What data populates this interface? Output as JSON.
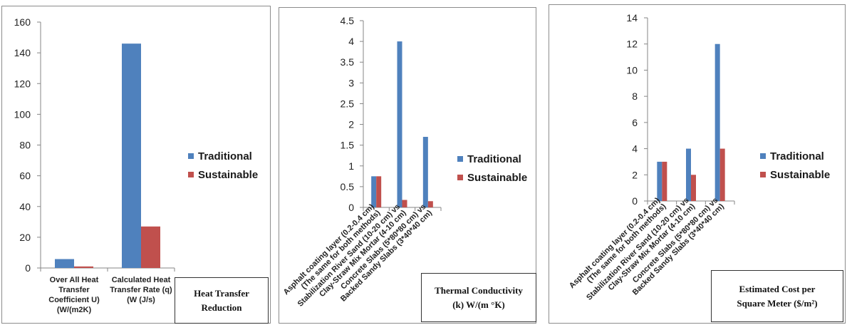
{
  "colors": {
    "traditional": "#4f81bd",
    "sustainable": "#c0504d"
  },
  "chart_data": [
    {
      "type": "bar",
      "categories": [
        "Over All Heat\nTransfer\nCoefficient U)\n(W/(m2K)",
        "Calculated Heat\nTransfer Rate (q)\n(W (J/s)"
      ],
      "series": [
        {
          "name": "Traditional",
          "values": [
            5.8,
            146
          ]
        },
        {
          "name": "Sustainable",
          "values": [
            1,
            27
          ]
        }
      ],
      "ylim": [
        0,
        160
      ],
      "ticks": [
        "0",
        "20",
        "40",
        "60",
        "80",
        "100",
        "120",
        "140",
        "160"
      ],
      "caption": "Heat Transfer\nReduction",
      "legend": "right"
    },
    {
      "type": "bar",
      "categories": [
        "Asphalt coating layer (0.2-0.4 cm)\n(The same for both methods)",
        "Stabilization River Sand (10-20 cm) vs\nClay-Straw Mix Mortar (4-10 cm)",
        "Concrete Slabs (5*80*80 cm) vs\nBacked Sandy Slabs (3*40*40 cm)"
      ],
      "series": [
        {
          "name": "Traditional",
          "values": [
            0.75,
            4.0,
            1.7
          ]
        },
        {
          "name": "Sustainable",
          "values": [
            0.75,
            0.18,
            0.15
          ]
        }
      ],
      "ylim": [
        0,
        4.5
      ],
      "ticks": [
        "0",
        "0.5",
        "1",
        "1.5",
        "2",
        "2.5",
        "3",
        "3.5",
        "4",
        "4.5"
      ],
      "caption": "Thermal Conductivity\n(k) W/(m °K)",
      "legend": "right"
    },
    {
      "type": "bar",
      "categories": [
        "Asphalt coating layer (0.2-0.4 cm)\n(The same for both methods)",
        "Stabilization River Sand (10-20 cm) vs\nClay-Straw Mix Mortar (4-10 cm)",
        "Concrete Slabs (5*80*80 cm) vs\nBacked Sandy Slabs (3*40*40 cm)"
      ],
      "series": [
        {
          "name": "Traditional",
          "values": [
            3,
            4,
            12
          ]
        },
        {
          "name": "Sustainable",
          "values": [
            3,
            2,
            4
          ]
        }
      ],
      "ylim": [
        0,
        14
      ],
      "ticks": [
        "0",
        "2",
        "4",
        "6",
        "8",
        "10",
        "12",
        "14"
      ],
      "caption": "Estimated Cost per\nSquare Meter ($/m²)",
      "legend": "right"
    }
  ]
}
